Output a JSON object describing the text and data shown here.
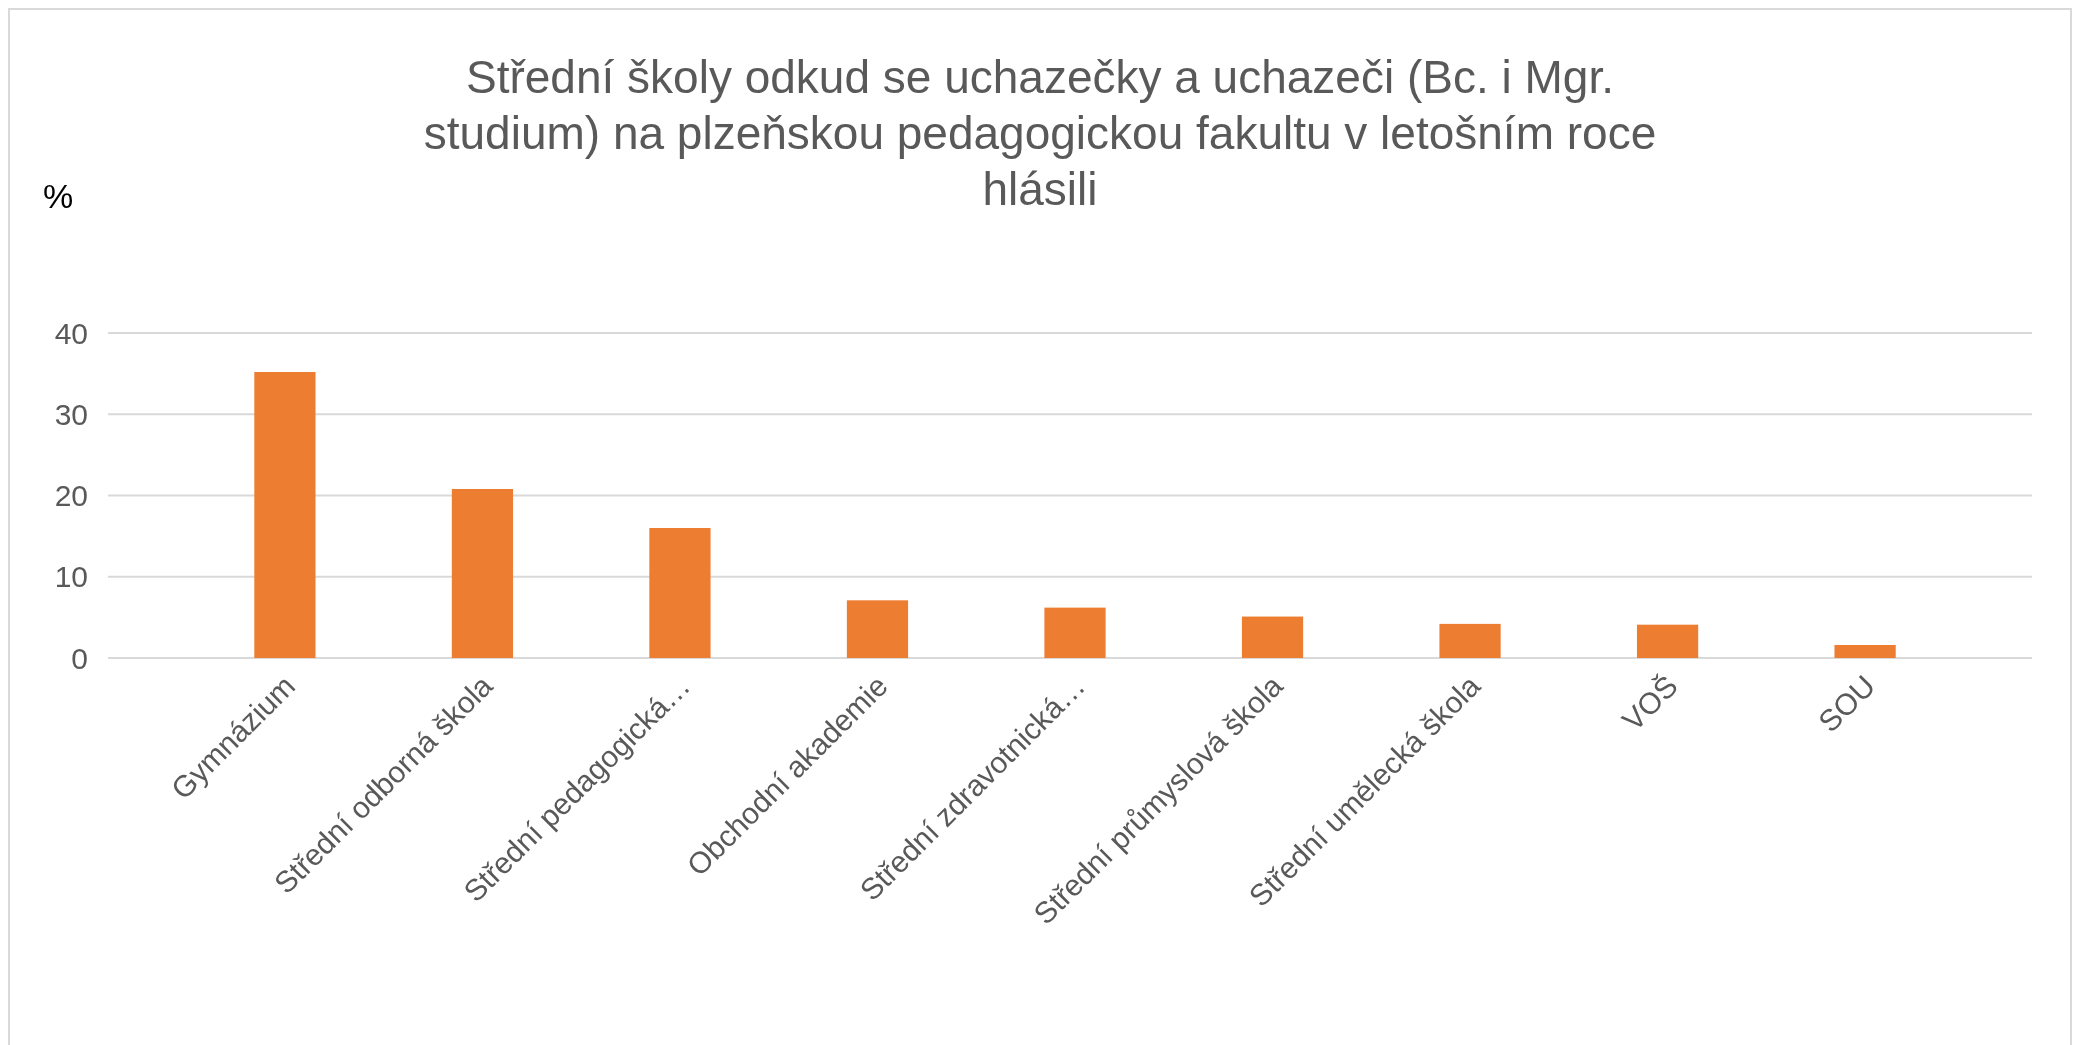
{
  "chart_data": {
    "type": "bar",
    "title": "Střední školy odkud se uchazečky a uchazeči (Bc. i Mgr. studium) na plzeňskou pedagogickou fakultu v letošním roce hlásili",
    "ylabel": "%",
    "categories": [
      "Gymnázium",
      "Střední odborná škola",
      "Střední pedagogická…",
      "Obchodní akademie",
      "Střední zdravotnická…",
      "Střední průmyslová škola",
      "Střední umělecká škola",
      "VOŠ",
      "SOU"
    ],
    "values": [
      35.2,
      20.8,
      16.0,
      7.1,
      6.2,
      5.1,
      4.2,
      4.1,
      1.6
    ],
    "color": "#ed7d31",
    "ylim": [
      0,
      40
    ],
    "yticks": [
      0,
      10,
      20,
      30,
      40
    ],
    "grid": "y"
  }
}
